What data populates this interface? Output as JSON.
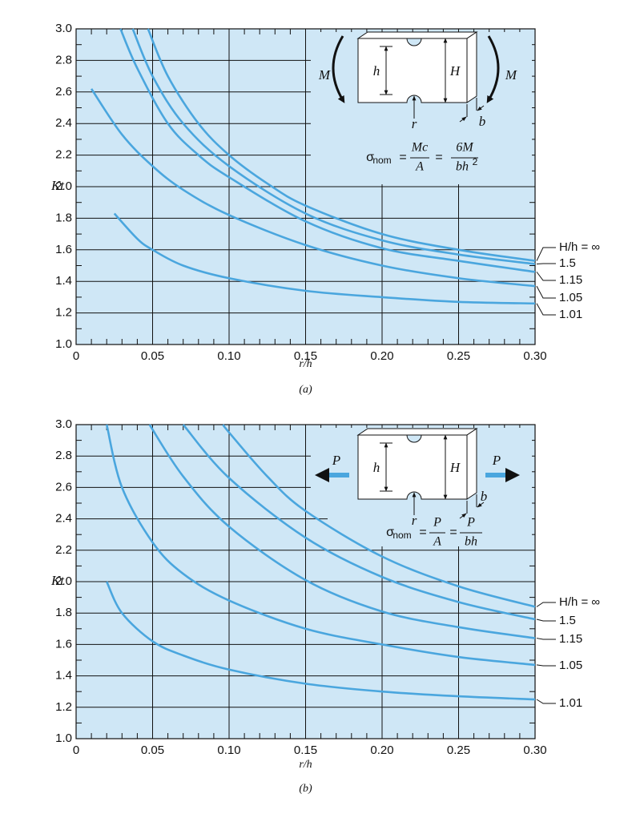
{
  "chart_data": [
    {
      "type": "line",
      "caption": "(a)",
      "x_label": "r/h",
      "y_label": "Kt",
      "xlim": [
        0,
        0.3
      ],
      "ylim": [
        1,
        3
      ],
      "xticks": [
        0,
        0.05,
        {
          "value": 0.1,
          "label": "0.10"
        },
        0.15,
        {
          "value": 0.2,
          "label": "0.20"
        },
        0.25,
        {
          "value": 0.3,
          "label": "0.30"
        }
      ],
      "yticks": [
        {
          "value": 1,
          "label": "1.0"
        },
        1.2,
        1.4,
        1.6,
        1.8,
        {
          "value": 2,
          "label": "2.0"
        },
        2.2,
        2.4,
        2.6,
        2.8,
        {
          "value": 3,
          "label": "3.0"
        }
      ],
      "x_minor_ticks": [
        0.01,
        0.02,
        0.03,
        0.04,
        0.06,
        0.07,
        0.08,
        0.09,
        0.11,
        0.12,
        0.13,
        0.14,
        0.16,
        0.17,
        0.18,
        0.19,
        0.21,
        0.22,
        0.23,
        0.24,
        0.26,
        0.27,
        0.28,
        0.29
      ],
      "y_minor_ticks": [
        1.1,
        1.3,
        1.5,
        1.7,
        1.9,
        2.1,
        2.3,
        2.5,
        2.7,
        2.9
      ],
      "grid": true,
      "background": "#cfe7f6",
      "series": [
        {
          "name": "H/h = ∞",
          "color": "#4aa6de",
          "x": [
            0.047,
            0.06,
            0.08,
            0.1,
            0.125,
            0.15,
            0.2,
            0.25,
            0.3
          ],
          "values": [
            3.0,
            2.7,
            2.4,
            2.2,
            2.02,
            1.88,
            1.7,
            1.6,
            1.53
          ]
        },
        {
          "name": "1.5",
          "color": "#4aa6de",
          "x": [
            0.037,
            0.05,
            0.07,
            0.1,
            0.15,
            0.2,
            0.25,
            0.3
          ],
          "values": [
            3.0,
            2.7,
            2.4,
            2.13,
            1.83,
            1.66,
            1.57,
            1.51
          ]
        },
        {
          "name": "1.15",
          "color": "#4aa6de",
          "x": [
            0.029,
            0.04,
            0.06,
            0.08,
            0.1,
            0.15,
            0.2,
            0.25,
            0.3
          ],
          "values": [
            3.0,
            2.75,
            2.4,
            2.2,
            2.06,
            1.78,
            1.61,
            1.53,
            1.46
          ]
        },
        {
          "name": "1.05",
          "color": "#4aa6de",
          "x": [
            0.01,
            0.03,
            0.05,
            0.07,
            0.1,
            0.15,
            0.2,
            0.25,
            0.3
          ],
          "values": [
            2.62,
            2.33,
            2.13,
            1.98,
            1.82,
            1.63,
            1.5,
            1.42,
            1.37
          ]
        },
        {
          "name": "1.01",
          "color": "#4aa6de",
          "x": [
            0.025,
            0.04,
            0.05,
            0.07,
            0.1,
            0.15,
            0.2,
            0.25,
            0.3
          ],
          "values": [
            1.83,
            1.67,
            1.6,
            1.5,
            1.42,
            1.34,
            1.3,
            1.27,
            1.26
          ]
        }
      ],
      "annotations": [
        "M",
        "M",
        "h",
        "H",
        "r",
        "b"
      ],
      "equation": [
        "σ",
        "nom",
        "=",
        "Mc",
        "A",
        "=",
        "6M",
        "bh",
        "2"
      ]
    },
    {
      "type": "line",
      "caption": "(b)",
      "x_label": "r/h",
      "y_label": "Kt",
      "xlim": [
        0,
        0.3
      ],
      "ylim": [
        1,
        3
      ],
      "xticks": [
        0,
        0.05,
        {
          "value": 0.1,
          "label": "0.10"
        },
        0.15,
        {
          "value": 0.2,
          "label": "0.20"
        },
        0.25,
        {
          "value": 0.3,
          "label": "0.30"
        }
      ],
      "yticks": [
        {
          "value": 1,
          "label": "1.0"
        },
        1.2,
        1.4,
        1.6,
        1.8,
        {
          "value": 2,
          "label": "2.0"
        },
        2.2,
        2.4,
        2.6,
        2.8,
        {
          "value": 3,
          "label": "3.0"
        }
      ],
      "x_minor_ticks": [
        0.01,
        0.02,
        0.03,
        0.04,
        0.06,
        0.07,
        0.08,
        0.09,
        0.11,
        0.12,
        0.13,
        0.14,
        0.16,
        0.17,
        0.18,
        0.19,
        0.21,
        0.22,
        0.23,
        0.24,
        0.26,
        0.27,
        0.28,
        0.29
      ],
      "y_minor_ticks": [
        1.1,
        1.3,
        1.5,
        1.7,
        1.9,
        2.1,
        2.3,
        2.5,
        2.7,
        2.9
      ],
      "grid": true,
      "background": "#cfe7f6",
      "series": [
        {
          "name": "H/h = ∞",
          "color": "#4aa6de",
          "x": [
            0.096,
            0.1,
            0.125,
            0.15,
            0.2,
            0.25,
            0.3
          ],
          "values": [
            3.0,
            2.95,
            2.67,
            2.45,
            2.16,
            1.97,
            1.84
          ]
        },
        {
          "name": "1.5",
          "color": "#4aa6de",
          "x": [
            0.07,
            0.1,
            0.15,
            0.2,
            0.25,
            0.3
          ],
          "values": [
            3.0,
            2.66,
            2.28,
            2.03,
            1.87,
            1.76
          ]
        },
        {
          "name": "1.15",
          "color": "#4aa6de",
          "x": [
            0.048,
            0.07,
            0.1,
            0.15,
            0.2,
            0.25,
            0.3
          ],
          "values": [
            3.0,
            2.67,
            2.35,
            2.01,
            1.81,
            1.71,
            1.64
          ]
        },
        {
          "name": "1.05",
          "color": "#4aa6de",
          "x": [
            0.02,
            0.03,
            0.05,
            0.07,
            0.1,
            0.15,
            0.2,
            0.25,
            0.3
          ],
          "values": [
            3.0,
            2.6,
            2.25,
            2.05,
            1.88,
            1.7,
            1.6,
            1.52,
            1.47
          ]
        },
        {
          "name": "1.01",
          "color": "#4aa6de",
          "x": [
            0.02,
            0.03,
            0.05,
            0.07,
            0.1,
            0.15,
            0.2,
            0.25,
            0.3
          ],
          "values": [
            2.0,
            1.8,
            1.62,
            1.53,
            1.44,
            1.35,
            1.3,
            1.27,
            1.25
          ]
        }
      ],
      "annotations": [
        "P",
        "P",
        "h",
        "H",
        "r",
        "b"
      ],
      "equation": [
        "σ",
        "nom",
        "=",
        "P",
        "A",
        "=",
        "P",
        "bh"
      ]
    }
  ]
}
